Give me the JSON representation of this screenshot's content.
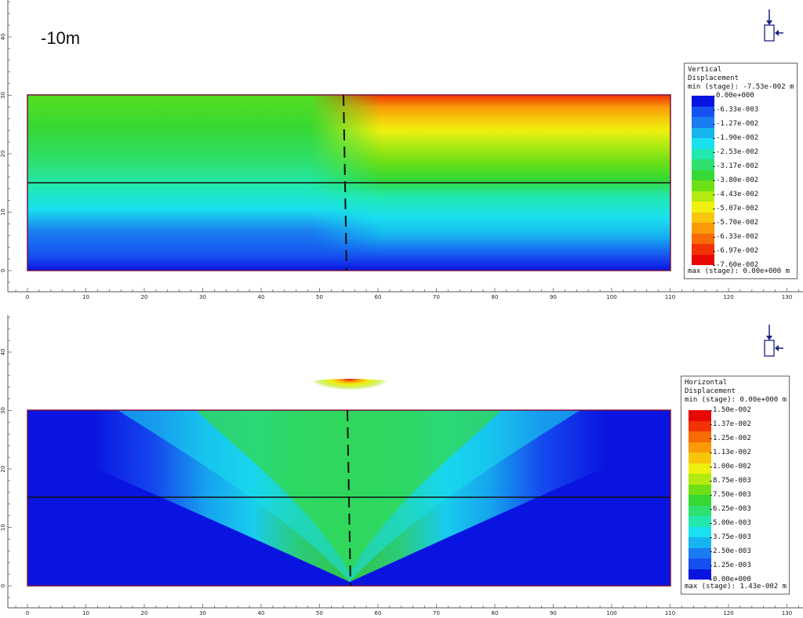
{
  "caption": "-10m",
  "panels": [
    {
      "id": "vertical",
      "legend": {
        "title": [
          "Vertical",
          "Displacement",
          "min (stage): -7.53e-002 m"
        ],
        "labels": [
          "0.00e+000",
          "-6.33e-003",
          "-1.27e-002",
          "-1.90e-002",
          "-2.53e-002",
          "-3.17e-002",
          "-3.80e-002",
          "-4.43e-002",
          "-5.07e-002",
          "-5.70e-002",
          "-6.33e-002",
          "-6.97e-002",
          "-7.60e-002"
        ],
        "colors": [
          "#0a14e0",
          "#1650f0",
          "#1a7cf0",
          "#17b4ef",
          "#1ae0ef",
          "#22e8b0",
          "#2ee070",
          "#35d835",
          "#6ee016",
          "#b4ea12",
          "#f0f010",
          "#f7c60a",
          "#f99a06",
          "#f76a04",
          "#f23204",
          "#e80808"
        ],
        "footer": "max (stage): 0.00e+000 m"
      },
      "x_ticks": [
        "0",
        "10",
        "20",
        "30",
        "40",
        "50",
        "60",
        "70",
        "80",
        "90",
        "100",
        "110",
        "120",
        "130"
      ],
      "y_ticks": [
        "0",
        "10",
        "20",
        "30",
        "40"
      ]
    },
    {
      "id": "horizontal",
      "legend": {
        "title": [
          "Horizontal",
          "Displacement",
          "min (stage): 0.00e+000 m"
        ],
        "labels": [
          "1.50e-002",
          "1.37e-002",
          "1.25e-002",
          "1.13e-002",
          "1.00e-002",
          "8.75e-003",
          "7.50e-003",
          "6.25e-003",
          "5.00e-003",
          "3.75e-003",
          "2.50e-003",
          "1.25e-003",
          "0.00e+000"
        ],
        "colors": [
          "#e80808",
          "#f23204",
          "#f76a04",
          "#f99a06",
          "#f7c60a",
          "#f0f010",
          "#b4ea12",
          "#6ee016",
          "#35d835",
          "#2ee070",
          "#22e8b0",
          "#1ae0ef",
          "#17b4ef",
          "#1a7cf0",
          "#1650f0",
          "#0a14e0"
        ],
        "footer": "max (stage): 1.43e-002 m"
      },
      "x_ticks": [
        "0",
        "10",
        "20",
        "30",
        "40",
        "50",
        "60",
        "70",
        "80",
        "90",
        "100",
        "110",
        "120",
        "130"
      ],
      "y_ticks": [
        "0",
        "10",
        "20",
        "30",
        "40"
      ]
    }
  ]
}
